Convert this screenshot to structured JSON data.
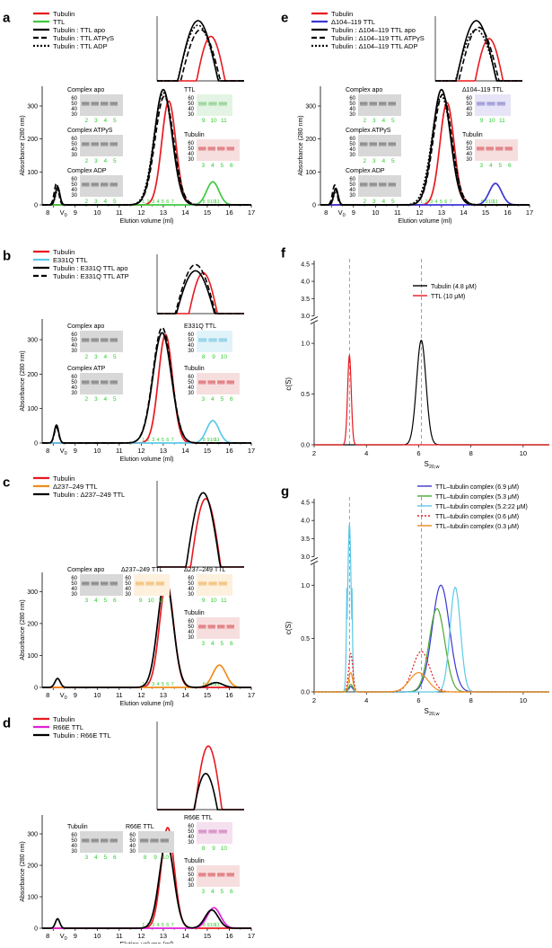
{
  "figure": {
    "panels": [
      {
        "id": "a",
        "label": "a",
        "legend": [
          "Tubulin",
          "TTL",
          "Tubulin : TTL apo",
          "Tubulin : TTL ATPγS",
          "Tubulin : TTL ADP"
        ],
        "gels": [
          "Complex apo",
          "Complex ATPγS",
          "Complex ADP",
          "TTL",
          "Tubulin"
        ]
      },
      {
        "id": "b",
        "label": "b",
        "legend": [
          "Tubulin",
          "E331Q TTL",
          "Tubulin : E331Q TTL  apo",
          "Tubulin : E331Q TTL  ATP"
        ],
        "gels": [
          "Complex apo",
          "Complex ATP",
          "E331Q  TTL",
          "Tubulin"
        ]
      },
      {
        "id": "c",
        "label": "c",
        "legend": [
          "Tubulin",
          "Δ237–249 TTL",
          "Tubulin : Δ237–249 TTL"
        ],
        "gels": [
          "Complex apo",
          "Δ237–249 TTL",
          "Δ237–249 TTL",
          "Tubulin"
        ]
      },
      {
        "id": "d",
        "label": "d",
        "legend": [
          "Tubulin",
          "R66E TTL",
          "Tubulin : R66E TTL"
        ],
        "gels": [
          "Tubulin",
          "R66E TTL",
          "R66E TTL",
          "Tubulin"
        ]
      },
      {
        "id": "e",
        "label": "e",
        "legend": [
          "Tubulin",
          "Δ104–119  TTL",
          "Tubulin : Δ104–119 TTL  apo",
          "Tubulin : Δ104–119 TTL  ATPγS",
          "Tubulin : Δ104–119 TTL  ADP"
        ],
        "gels": [
          "Complex apo",
          "Complex ATPγS",
          "Complex ADP",
          "Δ104–119  TTL",
          "Tubulin"
        ]
      },
      {
        "id": "f",
        "label": "f",
        "legend": [
          "Tubulin (4.8 μM)",
          "TTL (10 μM)"
        ]
      },
      {
        "id": "g",
        "label": "g",
        "legend": [
          "TTL–tubulin complex (6.9 μM)",
          "TTL–tubulin complex (5.3 μM)",
          "TTL–tubulin complex (5.2:22 μM)",
          "TTL–tubulin complex (0.6 μM)",
          "TTL–tubulin complex (0.3 μM)"
        ]
      }
    ],
    "sec_axes": {
      "xlabel": "Elution volume (ml)",
      "ylabel": "Absorbance (280 nm)",
      "xticks": [
        "8",
        "9",
        "10",
        "11",
        "12",
        "13",
        "14",
        "15",
        "16",
        "17"
      ],
      "yticks": [
        "0",
        "100",
        "200",
        "300"
      ],
      "v0_label": "V",
      "v0_sub": "0"
    },
    "auc_axes": {
      "ylabel": "c(S)",
      "xlabel": "S",
      "xlabel_sub": "20,w",
      "xticks": [
        "2",
        "4",
        "6",
        "8",
        "10"
      ],
      "yticks_low": [
        "0.0",
        "0.5",
        "1.0"
      ],
      "yticks_high": [
        "3.0",
        "3.5",
        "4.0",
        "4.5"
      ]
    },
    "gel_markers": [
      "60",
      "50",
      "40",
      "30"
    ],
    "colors": {
      "tubulin": "#e8191f",
      "ttl": "#3ec93e",
      "e331q": "#5bc9e8",
      "d237": "#f08c1a",
      "r66e": "#e020d6",
      "d104": "#3b36d6",
      "complex": "#000000",
      "fraction_text": "#2ecc2e",
      "g_green": "#4aa832"
    }
  },
  "chart_data": [
    {
      "panel": "a",
      "type": "line",
      "xlabel": "Elution volume (ml)",
      "ylabel": "Absorbance (280 nm)",
      "xlim": [
        7.5,
        17
      ],
      "ylim": [
        0,
        360
      ],
      "series": [
        {
          "name": "Tubulin",
          "peaks": [
            {
              "x": 13.25,
              "y": 315,
              "w": 0.32
            }
          ]
        },
        {
          "name": "TTL",
          "peaks": [
            {
              "x": 15.25,
              "y": 70,
              "w": 0.28
            }
          ]
        },
        {
          "name": "Tubulin : TTL apo",
          "peaks": [
            {
              "x": 8.2,
              "y": 55,
              "w": 0.1
            },
            {
              "x": 13.0,
              "y": 350,
              "w": 0.4
            }
          ]
        },
        {
          "name": "Tubulin : TTL ATPγS",
          "peaks": [
            {
              "x": 8.15,
              "y": 65,
              "w": 0.1
            },
            {
              "x": 13.05,
              "y": 330,
              "w": 0.42
            }
          ]
        },
        {
          "name": "Tubulin : TTL ADP",
          "peaks": [
            {
              "x": 8.2,
              "y": 45,
              "w": 0.1
            },
            {
              "x": 13.0,
              "y": 340,
              "w": 0.42
            }
          ]
        }
      ]
    },
    {
      "panel": "b",
      "type": "line",
      "xlabel": "Elution volume (ml)",
      "ylabel": "Absorbance (280 nm)",
      "xlim": [
        7.5,
        17
      ],
      "ylim": [
        0,
        360
      ],
      "series": [
        {
          "name": "Tubulin",
          "peaks": [
            {
              "x": 13.1,
              "y": 315,
              "w": 0.32
            }
          ]
        },
        {
          "name": "E331Q TTL",
          "peaks": [
            {
              "x": 15.25,
              "y": 65,
              "w": 0.28
            }
          ]
        },
        {
          "name": "Tubulin : E331Q TTL  apo",
          "peaks": [
            {
              "x": 8.15,
              "y": 52,
              "w": 0.1
            },
            {
              "x": 12.95,
              "y": 320,
              "w": 0.42
            }
          ]
        },
        {
          "name": "Tubulin : E331Q TTL  ATP",
          "peaks": [
            {
              "x": 8.15,
              "y": 45,
              "w": 0.1
            },
            {
              "x": 12.95,
              "y": 335,
              "w": 0.42
            }
          ]
        }
      ]
    },
    {
      "panel": "c",
      "type": "line",
      "xlabel": "Elution volume (ml)",
      "ylabel": "Absorbance (280 nm)",
      "xlim": [
        7.5,
        17
      ],
      "ylim": [
        0,
        360
      ],
      "series": [
        {
          "name": "Tubulin",
          "peaks": [
            {
              "x": 13.15,
              "y": 330,
              "w": 0.32
            }
          ]
        },
        {
          "name": "Δ237–249 TTL",
          "peaks": [
            {
              "x": 15.55,
              "y": 70,
              "w": 0.3
            }
          ]
        },
        {
          "name": "Tubulin : Δ237–249 TTL",
          "peaks": [
            {
              "x": 8.2,
              "y": 28,
              "w": 0.12
            },
            {
              "x": 13.1,
              "y": 340,
              "w": 0.35
            },
            {
              "x": 15.4,
              "y": 15,
              "w": 0.3
            }
          ]
        }
      ]
    },
    {
      "panel": "d",
      "type": "line",
      "xlabel": "Elution volume (ml)",
      "ylabel": "Absorbance (280 nm)",
      "xlim": [
        7.5,
        17
      ],
      "ylim": [
        0,
        360
      ],
      "series": [
        {
          "name": "Tubulin",
          "peaks": [
            {
              "x": 13.2,
              "y": 320,
              "w": 0.3
            }
          ]
        },
        {
          "name": "R66E TTL",
          "peaks": [
            {
              "x": 15.3,
              "y": 65,
              "w": 0.3
            }
          ]
        },
        {
          "name": "Tubulin : R66E TTL",
          "peaks": [
            {
              "x": 8.2,
              "y": 30,
              "w": 0.1
            },
            {
              "x": 13.15,
              "y": 275,
              "w": 0.33
            },
            {
              "x": 15.2,
              "y": 58,
              "w": 0.3
            }
          ]
        }
      ]
    },
    {
      "panel": "e",
      "type": "line",
      "xlabel": "Elution volume (ml)",
      "ylabel": "Absorbance (280 nm)",
      "xlim": [
        7.5,
        17
      ],
      "ylim": [
        0,
        360
      ],
      "series": [
        {
          "name": "Tubulin",
          "peaks": [
            {
              "x": 13.25,
              "y": 310,
              "w": 0.32
            }
          ]
        },
        {
          "name": "Δ104–119  TTL",
          "peaks": [
            {
              "x": 15.45,
              "y": 65,
              "w": 0.28
            }
          ]
        },
        {
          "name": "Tubulin : Δ104–119 TTL  apo",
          "peaks": [
            {
              "x": 8.2,
              "y": 50,
              "w": 0.1
            },
            {
              "x": 13.0,
              "y": 350,
              "w": 0.4
            }
          ]
        },
        {
          "name": "Tubulin : Δ104–119 TTL  ATPγS",
          "peaks": [
            {
              "x": 8.15,
              "y": 60,
              "w": 0.1
            },
            {
              "x": 13.05,
              "y": 335,
              "w": 0.42
            }
          ]
        },
        {
          "name": "Tubulin : Δ104–119 TTL  ADP",
          "peaks": [
            {
              "x": 8.2,
              "y": 42,
              "w": 0.1
            },
            {
              "x": 13.0,
              "y": 330,
              "w": 0.44
            }
          ]
        }
      ]
    },
    {
      "panel": "f",
      "type": "line",
      "xlabel": "S20,w",
      "ylabel": "c(S)",
      "xlim": [
        2,
        11
      ],
      "series": [
        {
          "name": "Tubulin (4.8 μM)",
          "peaks": [
            {
              "x": 6.1,
              "y": 1.03,
              "w": 0.18
            }
          ]
        },
        {
          "name": "TTL (10 μM)",
          "peaks": [
            {
              "x": 3.35,
              "y": 0.88,
              "w": 0.07
            }
          ]
        }
      ]
    },
    {
      "panel": "g",
      "type": "line",
      "xlabel": "S20,w",
      "ylabel": "c(S)",
      "xlim": [
        2,
        11
      ],
      "series": [
        {
          "name": "TTL–tubulin complex (6.9 μM)",
          "peaks": [
            {
              "x": 3.4,
              "y": 0.05,
              "w": 0.08
            },
            {
              "x": 6.85,
              "y": 1.0,
              "w": 0.33
            }
          ]
        },
        {
          "name": "TTL–tubulin complex (5.3 μM)",
          "peaks": [
            {
              "x": 3.4,
              "y": 0.07,
              "w": 0.08
            },
            {
              "x": 6.7,
              "y": 0.78,
              "w": 0.3
            }
          ]
        },
        {
          "name": "TTL–tubulin complex (5.2:22 μM)",
          "peaks": [
            {
              "x": 3.35,
              "y": 3.9,
              "w": 0.06
            },
            {
              "x": 7.4,
              "y": 0.98,
              "w": 0.2
            }
          ]
        },
        {
          "name": "TTL–tubulin complex (0.6 μM)",
          "peaks": [
            {
              "x": 3.4,
              "y": 0.36,
              "w": 0.08
            },
            {
              "x": 6.1,
              "y": 0.38,
              "w": 0.32
            }
          ]
        },
        {
          "name": "TTL–tubulin complex (0.3 μM)",
          "peaks": [
            {
              "x": 3.4,
              "y": 0.18,
              "w": 0.08
            },
            {
              "x": 6.0,
              "y": 0.18,
              "w": 0.35
            }
          ]
        }
      ]
    }
  ]
}
